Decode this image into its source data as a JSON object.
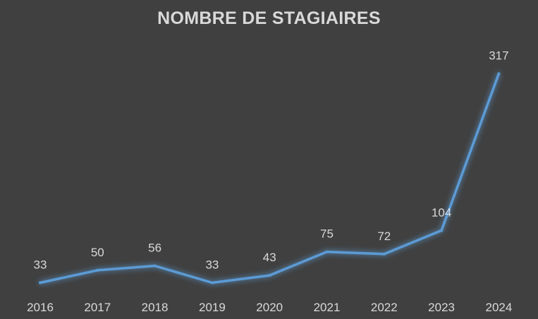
{
  "chart_data": {
    "type": "line",
    "title": "NOMBRE DE STAGIAIRES",
    "xlabel": "",
    "ylabel": "",
    "categories": [
      "2016",
      "2017",
      "2018",
      "2019",
      "2020",
      "2021",
      "2022",
      "2023",
      "2024"
    ],
    "series": [
      {
        "values": [
          33,
          50,
          56,
          33,
          43,
          75,
          72,
          104,
          317
        ],
        "color": "#5b9bd5"
      }
    ],
    "data_labels": true,
    "grid": false,
    "legend": "none",
    "background": "#404040",
    "text_color": "#d9d9d9"
  }
}
